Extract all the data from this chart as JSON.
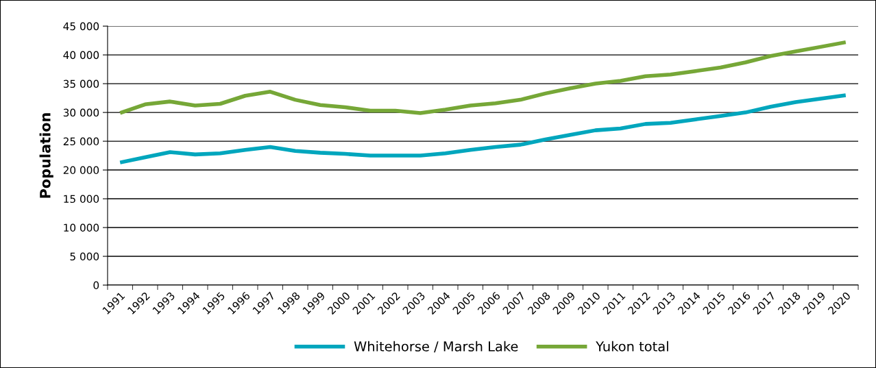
{
  "chart_data": {
    "type": "line",
    "ylabel": "Population",
    "categories": [
      "1991",
      "1992",
      "1993",
      "1994",
      "1995",
      "1996",
      "1997",
      "1998",
      "1999",
      "2000",
      "2001",
      "2002",
      "2003",
      "2004",
      "2005",
      "2006",
      "2007",
      "2008",
      "2009",
      "2010",
      "2011",
      "2012",
      "2013",
      "2014",
      "2015",
      "2016",
      "2017",
      "2018",
      "2019",
      "2020"
    ],
    "series": [
      {
        "name": "Whitehorse / Marsh Lake",
        "color": "#00a6bd",
        "values": [
          21300,
          22200,
          23100,
          22700,
          22900,
          23500,
          24000,
          23300,
          23000,
          22800,
          22500,
          22500,
          22500,
          22900,
          23500,
          24000,
          24400,
          25300,
          26100,
          26900,
          27200,
          28000,
          28200,
          28800,
          29400,
          30000,
          31000,
          31800,
          32400,
          33000
        ]
      },
      {
        "name": "Yukon total",
        "color": "#76a737",
        "values": [
          29900,
          31400,
          31900,
          31200,
          31500,
          32900,
          33600,
          32200,
          31300,
          30900,
          30300,
          30300,
          29900,
          30500,
          31200,
          31600,
          32200,
          33300,
          34200,
          35000,
          35500,
          36300,
          36600,
          37200,
          37800,
          38700,
          39800,
          40600,
          41400,
          42200
        ]
      }
    ],
    "ylim": [
      0,
      45000
    ],
    "yticks": [
      0,
      {
        "value": 5000,
        "label": "5 000"
      },
      {
        "value": 10000,
        "label": "10 000"
      },
      {
        "value": 15000,
        "label": "15 000"
      },
      {
        "value": 20000,
        "label": "20 000"
      },
      {
        "value": 25000,
        "label": "25 000"
      },
      {
        "value": 30000,
        "label": "30 000"
      },
      {
        "value": 35000,
        "label": "35 000"
      },
      {
        "value": 40000,
        "label": "40 000"
      },
      {
        "value": 45000,
        "label": "45 000"
      }
    ],
    "grid": "y",
    "legend": "bottom",
    "marker": "none",
    "line_style": "solid"
  }
}
